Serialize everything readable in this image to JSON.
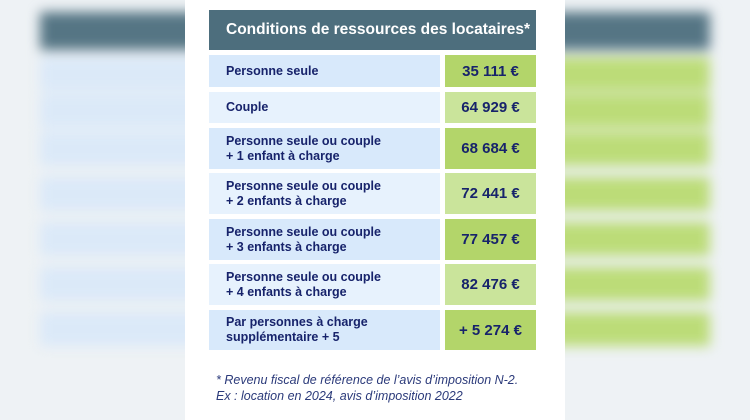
{
  "table": {
    "title": "Conditions de ressources des locataires*",
    "rows": [
      {
        "label_line1": "Personne seule",
        "label_line2": "",
        "value": "35 111 €"
      },
      {
        "label_line1": "Couple",
        "label_line2": "",
        "value": "64 929 €"
      },
      {
        "label_line1": "Personne seule ou couple",
        "label_line2": "+ 1 enfant à charge",
        "value": "68 684 €"
      },
      {
        "label_line1": "Personne seule ou couple",
        "label_line2": "+ 2 enfants à charge",
        "value": "72 441 €"
      },
      {
        "label_line1": "Personne seule ou couple",
        "label_line2": "+ 3 enfants à charge",
        "value": "77 457 €"
      },
      {
        "label_line1": "Personne seule ou couple",
        "label_line2": "+ 4 enfants à charge",
        "value": "82 476 €"
      },
      {
        "label_line1": "Par personnes à charge",
        "label_line2": "supplémentaire + 5",
        "value": "+ 5 274 €"
      }
    ]
  },
  "footnote": {
    "line1": "* Revenu fiscal de référence de l’avis d’imposition N-2.",
    "line2": "Ex : location en 2024, avis d’imposition 2022"
  }
}
